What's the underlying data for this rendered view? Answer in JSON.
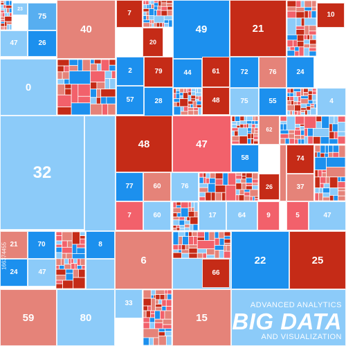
{
  "colors": {
    "dark_red": "#c52b17",
    "red": "#f2616b",
    "salmon": "#e58379",
    "blue": "#1c90ee",
    "light_blue": "#8ccbf9",
    "sky": "#57aef0"
  },
  "treemap": {
    "cells": [
      {
        "label": "23",
        "color": "light_blue"
      },
      {
        "label": "75",
        "color": "sky"
      },
      {
        "label": "47",
        "color": "light_blue"
      },
      {
        "label": "26",
        "color": "blue"
      },
      {
        "label": "40",
        "color": "salmon"
      },
      {
        "label": "7",
        "color": "dark_red"
      },
      {
        "label": "49",
        "color": "blue"
      },
      {
        "label": "21",
        "color": "dark_red"
      },
      {
        "label": "10",
        "color": "dark_red"
      },
      {
        "label": "0",
        "color": "light_blue"
      },
      {
        "label": "20",
        "color": "dark_red"
      },
      {
        "label": "2",
        "color": "blue"
      },
      {
        "label": "79",
        "color": "dark_red"
      },
      {
        "label": "44",
        "color": "blue"
      },
      {
        "label": "61",
        "color": "dark_red"
      },
      {
        "label": "72",
        "color": "blue"
      },
      {
        "label": "76",
        "color": "salmon"
      },
      {
        "label": "24",
        "color": "blue"
      },
      {
        "label": "57",
        "color": "blue"
      },
      {
        "label": "28",
        "color": "blue"
      },
      {
        "label": "48",
        "color": "dark_red"
      },
      {
        "label": "75",
        "color": "light_blue"
      },
      {
        "label": "55",
        "color": "blue"
      },
      {
        "label": "4",
        "color": "light_blue"
      },
      {
        "label": "32",
        "color": "light_blue"
      },
      {
        "label": "48",
        "color": "dark_red"
      },
      {
        "label": "47",
        "color": "red"
      },
      {
        "label": "62",
        "color": "salmon"
      },
      {
        "label": "58",
        "color": "blue"
      },
      {
        "label": "74",
        "color": "dark_red"
      },
      {
        "label": "77",
        "color": "blue"
      },
      {
        "label": "60",
        "color": "salmon"
      },
      {
        "label": "76",
        "color": "light_blue"
      },
      {
        "label": "26",
        "color": "dark_red"
      },
      {
        "label": "37",
        "color": "salmon"
      },
      {
        "label": "7",
        "color": "red"
      },
      {
        "label": "60",
        "color": "light_blue"
      },
      {
        "label": "17",
        "color": "light_blue"
      },
      {
        "label": "64",
        "color": "light_blue"
      },
      {
        "label": "9",
        "color": "red"
      },
      {
        "label": "5",
        "color": "red"
      },
      {
        "label": "47",
        "color": "light_blue"
      },
      {
        "label": "21",
        "color": "salmon"
      },
      {
        "label": "70",
        "color": "blue"
      },
      {
        "label": "8",
        "color": "blue"
      },
      {
        "label": "6",
        "color": "salmon"
      },
      {
        "label": "22",
        "color": "blue"
      },
      {
        "label": "25",
        "color": "dark_red"
      },
      {
        "label": "24",
        "color": "blue"
      },
      {
        "label": "47",
        "color": "light_blue"
      },
      {
        "label": "66",
        "color": "dark_red"
      },
      {
        "label": "59",
        "color": "salmon"
      },
      {
        "label": "80",
        "color": "light_blue"
      },
      {
        "label": "33",
        "color": "light_blue"
      },
      {
        "label": "15",
        "color": "salmon"
      }
    ],
    "mosaics": [
      {
        "colors": [
          "red",
          "blue",
          "salmon",
          "light_blue",
          "dark_red"
        ]
      },
      {
        "colors": [
          "salmon",
          "blue",
          "red",
          "light_blue",
          "dark_red"
        ]
      },
      {
        "colors": [
          "blue",
          "light_blue",
          "red",
          "salmon",
          "dark_red"
        ]
      },
      {
        "colors": [
          "red",
          "salmon",
          "blue",
          "dark_red",
          "light_blue"
        ]
      },
      {
        "colors": [
          "salmon",
          "light_blue",
          "red",
          "blue",
          "dark_red"
        ]
      },
      {
        "colors": [
          "blue",
          "red",
          "salmon",
          "light_blue",
          "dark_red"
        ]
      },
      {
        "colors": [
          "red",
          "blue",
          "salmon",
          "dark_red",
          "light_blue"
        ]
      },
      {
        "colors": [
          "light_blue",
          "red",
          "blue",
          "salmon",
          "dark_red"
        ]
      },
      {
        "colors": [
          "salmon",
          "red",
          "blue",
          "dark_red",
          "light_blue"
        ]
      },
      {
        "colors": [
          "red",
          "light_blue",
          "blue",
          "salmon",
          "dark_red"
        ]
      },
      {
        "colors": [
          "blue",
          "salmon",
          "red",
          "light_blue",
          "dark_red"
        ]
      },
      {
        "colors": [
          "dark_red",
          "red",
          "blue",
          "salmon",
          "light_blue"
        ]
      },
      {
        "colors": [
          "red",
          "blue",
          "dark_red",
          "salmon",
          "light_blue"
        ]
      },
      {
        "colors": [
          "blue",
          "red",
          "light_blue",
          "dark_red",
          "salmon"
        ]
      }
    ]
  },
  "branding": {
    "line1": "ADVANCED ANALYTICS",
    "title": "BIG DATA",
    "line2": "AND VISUALIZATION"
  },
  "stock_id": "166374455"
}
